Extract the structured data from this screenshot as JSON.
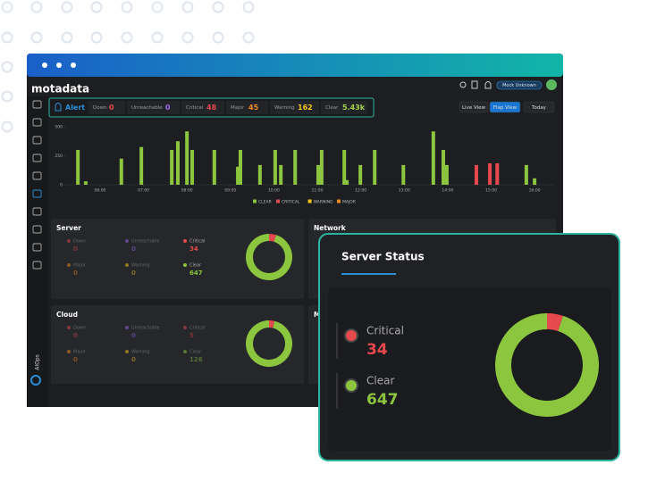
{
  "window": {
    "brand": "motadata",
    "user": "Mock Unknown",
    "sidebar_label": "AIOps"
  },
  "alert_bar": {
    "title": "Alert",
    "items": [
      {
        "label": "Down",
        "value": "0",
        "color": "#e5484d"
      },
      {
        "label": "Unreachable",
        "value": "0",
        "color": "#9b6bf2"
      },
      {
        "label": "Critical",
        "value": "48",
        "color": "#e5484d"
      },
      {
        "label": "Major",
        "value": "45",
        "color": "#f08a24"
      },
      {
        "label": "Warning",
        "value": "162",
        "color": "#f5c518"
      },
      {
        "label": "Clear",
        "value": "5.43k",
        "color": "#a6d44a"
      }
    ]
  },
  "view_buttons": [
    "Live View",
    "Flap View",
    "Today"
  ],
  "chart_data": {
    "type": "bar",
    "xlim": [
      5.24,
      16.45
    ],
    "ylim": [
      0,
      500
    ],
    "yticks": [
      0,
      250,
      500
    ],
    "xticks": [
      {
        "value": 6,
        "label": "06:00"
      },
      {
        "value": 7,
        "label": "07:00"
      },
      {
        "value": 8,
        "label": "08:00"
      },
      {
        "value": 9,
        "label": "09:00"
      },
      {
        "value": 10,
        "label": "10:00"
      },
      {
        "value": 11,
        "label": "11:00"
      },
      {
        "value": 12,
        "label": "12:00"
      },
      {
        "value": 13,
        "label": "13:00"
      },
      {
        "value": 14,
        "label": "14:00"
      },
      {
        "value": 15,
        "label": "15:00"
      },
      {
        "value": 16,
        "label": "16:00"
      }
    ],
    "series": [
      {
        "name": "CLEAR",
        "color": "#8cc63f",
        "x": [
          5.49,
          5.67,
          6.49,
          6.95,
          7.65,
          7.79,
          8.0,
          8.12,
          8.63,
          9.17,
          9.23,
          9.68,
          10.03,
          10.16,
          10.49,
          11.02,
          11.1,
          11.62,
          11.68,
          11.99,
          12.32,
          12.98,
          13.67,
          13.9,
          13.98,
          15.81,
          16.0
        ],
        "values": [
          300,
          30,
          225,
          325,
          300,
          375,
          460,
          300,
          300,
          155,
          300,
          170,
          300,
          170,
          300,
          170,
          300,
          300,
          40,
          170,
          300,
          170,
          460,
          300,
          170,
          170,
          55
        ]
      },
      {
        "name": "CRITICAL",
        "color": "#e5484d",
        "x": [
          14.66,
          14.97,
          15.14
        ],
        "values": [
          170,
          185,
          185
        ]
      },
      {
        "name": "WARNING",
        "color": "#f5c518",
        "x": [],
        "values": []
      },
      {
        "name": "MAJOR",
        "color": "#f08a24",
        "x": [],
        "values": []
      }
    ]
  },
  "panels": [
    {
      "title": "Server",
      "stats": [
        {
          "label": "Down",
          "value": 0,
          "color": "#e5484d"
        },
        {
          "label": "Unreachable",
          "value": 0,
          "color": "#9b6bf2"
        },
        {
          "label": "Critical",
          "value": 34,
          "color": "#e5484d"
        },
        {
          "label": "Major",
          "value": 0,
          "color": "#f08a24"
        },
        {
          "label": "Warning",
          "value": 0,
          "color": "#f5c518"
        },
        {
          "label": "Clear",
          "value": 647,
          "color": "#8cc63f"
        }
      ]
    },
    {
      "title": "Network"
    },
    {
      "title": "Cloud",
      "stats": [
        {
          "label": "Down",
          "value": 0,
          "color": "#e5484d"
        },
        {
          "label": "Unreachable",
          "value": 0,
          "color": "#9b6bf2"
        },
        {
          "label": "Critical",
          "value": 5,
          "color": "#e5484d"
        },
        {
          "label": "Major",
          "value": 0,
          "color": "#f08a24"
        },
        {
          "label": "Warning",
          "value": 0,
          "color": "#f5c518"
        },
        {
          "label": "Clear",
          "value": 126,
          "color": "#8cc63f"
        }
      ]
    },
    {
      "title": "M"
    }
  ],
  "popup": {
    "title": "Server Status",
    "items": [
      {
        "label": "Critical",
        "value": 34,
        "color": "#e5484d"
      },
      {
        "label": "Clear",
        "value": 647,
        "color": "#8cc63f"
      }
    ]
  }
}
